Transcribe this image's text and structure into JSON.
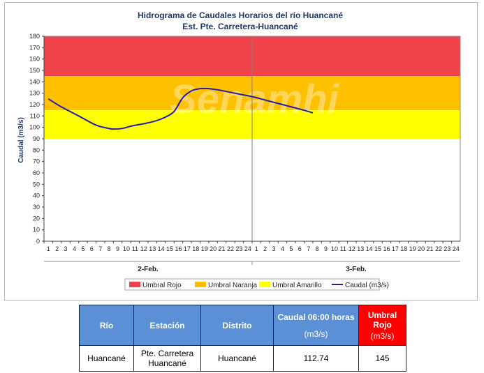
{
  "chart_data": {
    "type": "line",
    "title": "Hidrograma de Caudales Horarios del río Huancané",
    "subtitle": "Est. Pte. Carretera-Huancané",
    "ylabel": "Caudal  (m3/s)",
    "ylim": [
      0,
      180
    ],
    "yticks": [
      0,
      10,
      20,
      30,
      40,
      50,
      60,
      70,
      80,
      90,
      100,
      110,
      120,
      130,
      140,
      150,
      160,
      170,
      180
    ],
    "x_hour_ticks": [
      "1",
      "2",
      "3",
      "4",
      "5",
      "6",
      "7",
      "8",
      "9",
      "10",
      "11",
      "12",
      "13",
      "14",
      "15",
      "16",
      "17",
      "18",
      "19",
      "20",
      "21",
      "22",
      "23",
      "24"
    ],
    "day_groups": [
      "2-Feb.",
      "3-Feb."
    ],
    "threshold_bands": [
      {
        "name": "Umbral Rojo",
        "from": 145,
        "to": 180,
        "color": "#f0444c"
      },
      {
        "name": "Umbral Naranja",
        "from": 115,
        "to": 145,
        "color": "#ffc000"
      },
      {
        "name": "Umbral Amarillo",
        "from": 90,
        "to": 115,
        "color": "#ffff00"
      }
    ],
    "series": [
      {
        "name": "Caudal (m3/s)",
        "color": "#1f1fa8",
        "x": [
          0.5,
          2,
          4,
          6,
          7.5,
          8,
          9,
          10,
          11,
          12,
          13,
          14,
          15,
          16,
          17,
          18,
          19,
          20,
          21,
          22,
          23,
          24,
          25,
          26,
          27,
          28,
          29,
          30,
          31
        ],
        "y": [
          125,
          118,
          110,
          102,
          99,
          98.5,
          99,
          101,
          102.5,
          104,
          106,
          109,
          114,
          126,
          132,
          134,
          134,
          133,
          131.5,
          130,
          128.5,
          127,
          125,
          123,
          121,
          119,
          117,
          115,
          112.74
        ]
      }
    ],
    "legend": [
      "Umbral Rojo",
      "Umbral Naranja",
      "Umbral Amarillo",
      "Caudal (m3/s)"
    ],
    "legend_position": "bottom",
    "watermark": "Senamhi",
    "grid": false
  },
  "table": {
    "headers": {
      "rio": "Río",
      "estacion": "Estación",
      "distrito": "Distrito",
      "caudal": "Caudal 06:00 horas",
      "caudal_unit": "(m3/s)",
      "umbral": "Umbral Rojo",
      "umbral_unit": "(m3/s)"
    },
    "row": {
      "rio": "Huancané",
      "estacion_line1": "Pte. Carretera",
      "estacion_line2": "Huancané",
      "distrito": "Huancané",
      "caudal": "112.74",
      "umbral": "145"
    }
  }
}
